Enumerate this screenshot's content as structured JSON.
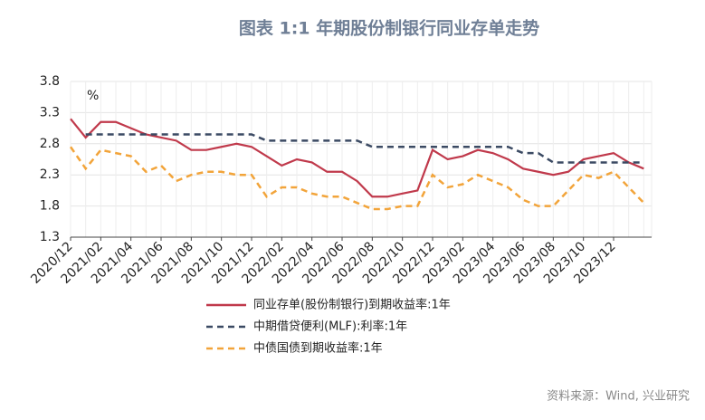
{
  "chart_data": {
    "type": "line",
    "title": "图表 1:1 年期股份制银行同业存单走势",
    "y_unit": "%",
    "source": "资料来源：Wind, 兴业研究",
    "categories": [
      "2020/12",
      null,
      "2021/02",
      null,
      "2021/04",
      null,
      "2021/06",
      null,
      "2021/08",
      null,
      "2021/10",
      null,
      "2021/12",
      null,
      "2022/02",
      null,
      "2022/04",
      null,
      "2022/06",
      null,
      "2022/08",
      null,
      "2022/10",
      null,
      "2022/12",
      null,
      "2023/02",
      null,
      "2023/04",
      null,
      "2023/06",
      null,
      "2023/08",
      null,
      "2023/10",
      null,
      "2023/12",
      null,
      null
    ],
    "ylim": [
      1.3,
      3.8
    ],
    "yticks": [
      1.3,
      1.8,
      2.3,
      2.8,
      3.3,
      3.8
    ],
    "legend": "bottom",
    "series": [
      {
        "name": "同业存单(股份制银行)到期收益率:1年",
        "color": "#c0394b",
        "dash": "solid",
        "values": [
          3.2,
          2.9,
          3.15,
          3.15,
          3.05,
          2.95,
          2.9,
          2.85,
          2.7,
          2.7,
          2.75,
          2.8,
          2.75,
          2.6,
          2.45,
          2.55,
          2.5,
          2.35,
          2.35,
          2.2,
          1.95,
          1.95,
          2.0,
          2.05,
          2.7,
          2.55,
          2.6,
          2.7,
          2.65,
          2.55,
          2.4,
          2.35,
          2.3,
          2.35,
          2.55,
          2.6,
          2.65,
          2.5,
          2.4
        ]
      },
      {
        "name": "中期借贷便利(MLF):利率:1年",
        "color": "#3b4a63",
        "dash": "dashed",
        "values": [
          null,
          2.95,
          2.95,
          2.95,
          2.95,
          2.95,
          2.95,
          2.95,
          2.95,
          2.95,
          2.95,
          2.95,
          2.95,
          2.85,
          2.85,
          2.85,
          2.85,
          2.85,
          2.85,
          2.85,
          2.75,
          2.75,
          2.75,
          2.75,
          2.75,
          2.75,
          2.75,
          2.75,
          2.75,
          2.75,
          2.65,
          2.65,
          2.5,
          2.5,
          2.5,
          2.5,
          2.5,
          2.5,
          2.5
        ]
      },
      {
        "name": "中债国债到期收益率:1年",
        "color": "#f2a43a",
        "dash": "dashed",
        "values": [
          2.75,
          2.4,
          2.7,
          2.65,
          2.6,
          2.35,
          2.45,
          2.2,
          2.3,
          2.35,
          2.35,
          2.3,
          2.3,
          1.95,
          2.1,
          2.1,
          2.0,
          1.95,
          1.95,
          1.85,
          1.75,
          1.75,
          1.8,
          1.8,
          2.3,
          2.1,
          2.15,
          2.3,
          2.2,
          2.1,
          1.9,
          1.8,
          1.8,
          2.05,
          2.3,
          2.25,
          2.35,
          2.1,
          1.85
        ]
      }
    ]
  }
}
